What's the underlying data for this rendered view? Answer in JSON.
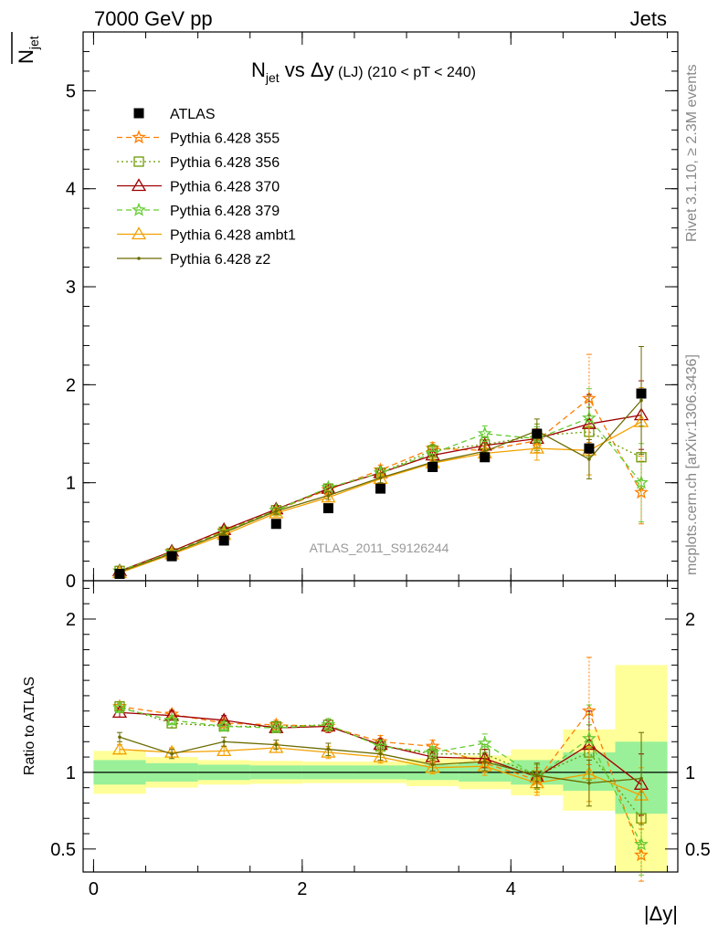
{
  "header": {
    "energy_label": "7000 GeV pp",
    "process_label": "Jets"
  },
  "side_notes": {
    "rivet": "Rivet 3.1.10, ≥ 2.3M events",
    "mcplots": "mcplots.cern.ch [arXiv:1306.3436]"
  },
  "colors": {
    "ATLAS": "#000000",
    "Pythia 6.428 355": "#ff7f00",
    "Pythia 6.428 356": "#6b9a00",
    "Pythia 6.428 370": "#a00000",
    "Pythia 6.428 379": "#66cc33",
    "Pythia 6.428 ambt1": "#f2a100",
    "Pythia 6.428 z2": "#6b6b00",
    "band_inner": "#99f099",
    "band_outer": "#ffff99"
  },
  "chart_data": [
    {
      "type": "line",
      "panel": "main",
      "title_main": "N",
      "title_sub": "jet",
      "title_rest": " vs Δy",
      "title_small": " (LJ) ",
      "title_range": "(210 < pT < 240)",
      "ylabel_main": "N",
      "ylabel_sub": "jet",
      "watermark": "ATLAS_2011_S9126244",
      "xlim": [
        -0.1,
        5.6
      ],
      "ylim": [
        0,
        5.6
      ],
      "yticks": [
        0,
        1,
        2,
        3,
        4,
        5
      ],
      "ytick_labels": [
        "0",
        "1",
        "2",
        "3",
        "4",
        "5"
      ],
      "x": [
        0.25,
        0.75,
        1.25,
        1.75,
        2.25,
        2.75,
        3.25,
        3.75,
        4.25,
        4.75,
        5.25
      ],
      "data": {
        "name": "ATLAS",
        "values": [
          0.07,
          0.25,
          0.41,
          0.58,
          0.74,
          0.94,
          1.16,
          1.26,
          1.5,
          1.35,
          1.91
        ]
      },
      "series": [
        {
          "name": "Pythia 6.428 355",
          "style": "dashed",
          "marker": "star",
          "values": [
            0.1,
            0.3,
            0.51,
            0.72,
            0.93,
            1.13,
            1.35,
            1.33,
            1.43,
            1.86,
            0.9
          ],
          "errors": [
            0.01,
            0.02,
            0.02,
            0.03,
            0.04,
            0.05,
            0.06,
            0.08,
            0.12,
            0.45,
            0.32
          ]
        },
        {
          "name": "Pythia 6.428 356",
          "style": "dotted",
          "marker": "open-square",
          "values": [
            0.1,
            0.28,
            0.5,
            0.72,
            0.94,
            1.1,
            1.33,
            1.39,
            1.48,
            1.52,
            1.26
          ],
          "errors": [
            0.01,
            0.02,
            0.02,
            0.03,
            0.04,
            0.05,
            0.06,
            0.08,
            0.12,
            0.25,
            0.32
          ]
        },
        {
          "name": "Pythia 6.428 370",
          "style": "solid",
          "marker": "open-triangle",
          "values": [
            0.1,
            0.3,
            0.52,
            0.73,
            0.94,
            1.1,
            1.28,
            1.38,
            1.45,
            1.6,
            1.69
          ],
          "errors": [
            0.01,
            0.02,
            0.02,
            0.03,
            0.04,
            0.05,
            0.06,
            0.08,
            0.12,
            0.3,
            0.35
          ]
        },
        {
          "name": "Pythia 6.428 379",
          "style": "dashed",
          "marker": "star",
          "values": [
            0.1,
            0.29,
            0.5,
            0.72,
            0.95,
            1.1,
            1.3,
            1.5,
            1.45,
            1.66,
            1.0
          ],
          "errors": [
            0.01,
            0.02,
            0.02,
            0.03,
            0.04,
            0.05,
            0.06,
            0.08,
            0.12,
            0.3,
            0.4
          ]
        },
        {
          "name": "Pythia 6.428 ambt1",
          "style": "solid",
          "marker": "open-triangle",
          "values": [
            0.08,
            0.27,
            0.47,
            0.69,
            0.85,
            1.04,
            1.2,
            1.3,
            1.35,
            1.33,
            1.62
          ],
          "errors": [
            0.01,
            0.02,
            0.02,
            0.03,
            0.04,
            0.05,
            0.06,
            0.08,
            0.12,
            0.25,
            0.35
          ]
        },
        {
          "name": "Pythia 6.428 z2",
          "style": "solid",
          "marker": "dot",
          "values": [
            0.09,
            0.28,
            0.49,
            0.71,
            0.87,
            1.05,
            1.21,
            1.32,
            1.53,
            1.24,
            1.84
          ],
          "errors": [
            0.01,
            0.02,
            0.02,
            0.03,
            0.04,
            0.05,
            0.06,
            0.08,
            0.12,
            0.2,
            0.55
          ]
        }
      ]
    },
    {
      "type": "line",
      "panel": "ratio",
      "ylabel": "Ratio to ATLAS",
      "xlabel": "|Δy|",
      "xlim": [
        -0.1,
        5.6
      ],
      "ylim": [
        0.35,
        2.25
      ],
      "xticks": [
        0,
        2,
        4
      ],
      "xtick_labels": [
        "0",
        "2",
        "4"
      ],
      "yticks": [
        0.5,
        1,
        2
      ],
      "ytick_labels": [
        "0.5",
        "1",
        "2"
      ],
      "bins": [
        [
          0.0,
          0.5
        ],
        [
          0.5,
          1.0
        ],
        [
          1.0,
          1.5
        ],
        [
          1.5,
          2.0
        ],
        [
          2.0,
          2.5
        ],
        [
          2.5,
          3.0
        ],
        [
          3.0,
          3.5
        ],
        [
          3.5,
          4.0
        ],
        [
          4.0,
          4.5
        ],
        [
          4.5,
          5.0
        ],
        [
          5.0,
          5.5
        ]
      ],
      "band_inner": [
        [
          0.92,
          1.08
        ],
        [
          0.94,
          1.06
        ],
        [
          0.95,
          1.05
        ],
        [
          0.955,
          1.045
        ],
        [
          0.955,
          1.045
        ],
        [
          0.955,
          1.045
        ],
        [
          0.95,
          1.05
        ],
        [
          0.94,
          1.06
        ],
        [
          0.92,
          1.08
        ],
        [
          0.88,
          1.13
        ],
        [
          0.73,
          1.2
        ]
      ],
      "band_outer": [
        [
          0.86,
          1.14
        ],
        [
          0.9,
          1.1
        ],
        [
          0.92,
          1.08
        ],
        [
          0.925,
          1.075
        ],
        [
          0.93,
          1.07
        ],
        [
          0.93,
          1.07
        ],
        [
          0.91,
          1.09
        ],
        [
          0.89,
          1.11
        ],
        [
          0.85,
          1.15
        ],
        [
          0.75,
          1.28
        ],
        [
          0.35,
          1.7
        ]
      ],
      "x": [
        0.25,
        0.75,
        1.25,
        1.75,
        2.25,
        2.75,
        3.25,
        3.75,
        4.25,
        4.75,
        5.25
      ],
      "series": [
        {
          "name": "Pythia 6.428 355",
          "style": "dashed",
          "marker": "star",
          "values": [
            1.43,
            1.38,
            1.32,
            1.31,
            1.3,
            1.2,
            1.17,
            1.06,
            0.95,
            1.4,
            0.46
          ],
          "errors": [
            0.03,
            0.03,
            0.03,
            0.03,
            0.04,
            0.04,
            0.04,
            0.06,
            0.08,
            0.35,
            0.17
          ]
        },
        {
          "name": "Pythia 6.428 356",
          "style": "dotted",
          "marker": "open-square",
          "values": [
            1.43,
            1.32,
            1.3,
            1.3,
            1.31,
            1.17,
            1.12,
            1.12,
            0.98,
            1.13,
            0.7
          ],
          "errors": [
            0.03,
            0.03,
            0.03,
            0.03,
            0.04,
            0.04,
            0.04,
            0.06,
            0.08,
            0.18,
            0.17
          ]
        },
        {
          "name": "Pythia 6.428 370",
          "style": "solid",
          "marker": "open-triangle",
          "values": [
            1.39,
            1.37,
            1.34,
            1.29,
            1.3,
            1.18,
            1.1,
            1.09,
            0.97,
            1.18,
            0.92
          ],
          "errors": [
            0.03,
            0.03,
            0.03,
            0.03,
            0.04,
            0.04,
            0.04,
            0.06,
            0.08,
            0.22,
            0.2
          ]
        },
        {
          "name": "Pythia 6.428 379",
          "style": "dashed",
          "marker": "star",
          "values": [
            1.42,
            1.34,
            1.3,
            1.29,
            1.31,
            1.17,
            1.13,
            1.19,
            0.97,
            1.22,
            0.53
          ],
          "errors": [
            0.03,
            0.03,
            0.03,
            0.03,
            0.04,
            0.04,
            0.04,
            0.06,
            0.08,
            0.22,
            0.2
          ]
        },
        {
          "name": "Pythia 6.428 ambt1",
          "style": "solid",
          "marker": "open-triangle",
          "values": [
            1.15,
            1.13,
            1.14,
            1.16,
            1.13,
            1.1,
            1.03,
            1.04,
            0.93,
            0.99,
            0.85
          ],
          "errors": [
            0.03,
            0.03,
            0.03,
            0.03,
            0.04,
            0.04,
            0.04,
            0.06,
            0.08,
            0.18,
            0.18
          ]
        },
        {
          "name": "Pythia 6.428 z2",
          "style": "solid",
          "marker": "dot",
          "values": [
            1.23,
            1.12,
            1.2,
            1.18,
            1.15,
            1.12,
            1.05,
            1.07,
            0.98,
            0.93,
            0.96
          ],
          "errors": [
            0.03,
            0.03,
            0.03,
            0.03,
            0.04,
            0.04,
            0.04,
            0.06,
            0.08,
            0.15,
            0.3
          ]
        }
      ]
    }
  ]
}
